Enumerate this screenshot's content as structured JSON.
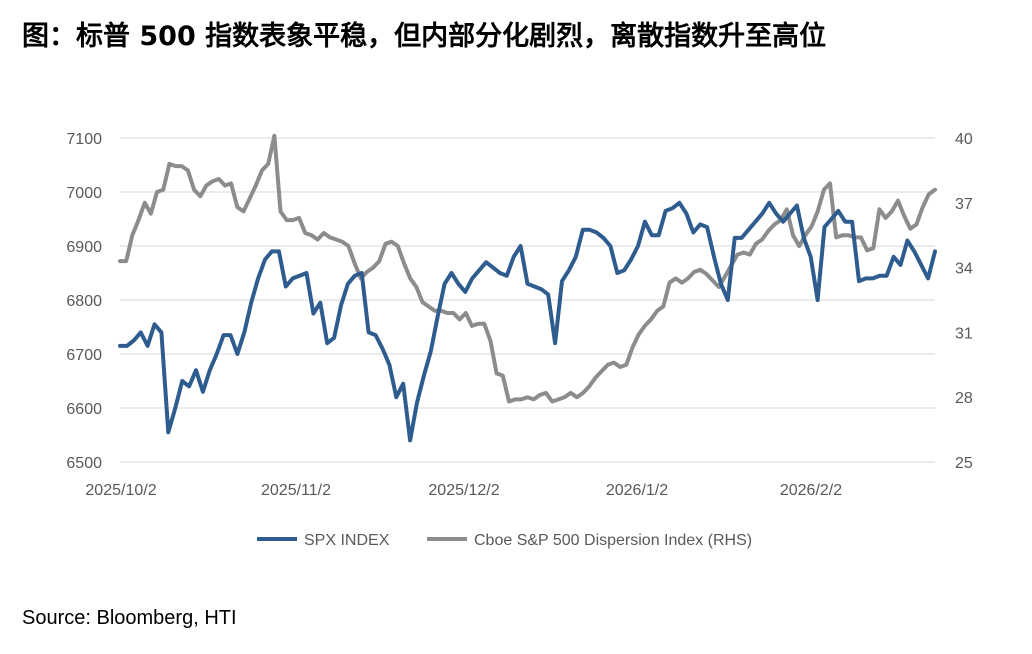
{
  "title": "图：标普 500 指数表象平稳，但内部分化剧烈，离散指数升至高位",
  "source": "Source: Bloomberg, HTI",
  "chart_data": {
    "type": "line",
    "x_tick_labels": [
      "2025/10/2",
      "2025/11/2",
      "2025/12/2",
      "2026/1/2",
      "2026/2/2"
    ],
    "left_axis": {
      "ticks": [
        6500,
        6600,
        6700,
        6800,
        6900,
        7000,
        7100
      ],
      "ylim": [
        6500,
        7100
      ]
    },
    "right_axis": {
      "ticks": [
        25,
        28,
        31,
        34,
        37,
        40
      ],
      "ylim": [
        25,
        40
      ]
    },
    "grid": "horizontal",
    "legend_position": "bottom",
    "series": [
      {
        "name": "SPX INDEX",
        "axis": "left",
        "color": "#2E5C8F",
        "values": [
          6715,
          6715,
          6725,
          6740,
          6715,
          6755,
          6740,
          6555,
          6600,
          6650,
          6640,
          6670,
          6630,
          6670,
          6700,
          6735,
          6735,
          6700,
          6740,
          6795,
          6840,
          6875,
          6890,
          6890,
          6825,
          6840,
          6845,
          6850,
          6775,
          6795,
          6720,
          6730,
          6790,
          6830,
          6845,
          6850,
          6740,
          6735,
          6710,
          6680,
          6620,
          6645,
          6540,
          6610,
          6660,
          6705,
          6770,
          6830,
          6850,
          6830,
          6815,
          6840,
          6855,
          6870,
          6860,
          6850,
          6845,
          6880,
          6900,
          6830,
          6825,
          6820,
          6810,
          6720,
          6835,
          6855,
          6880,
          6930,
          6930,
          6925,
          6915,
          6900,
          6850,
          6855,
          6875,
          6900,
          6945,
          6920,
          6920,
          6965,
          6970,
          6980,
          6960,
          6925,
          6940,
          6935,
          6880,
          6830,
          6800,
          6915,
          6915,
          6930,
          6945,
          6960,
          6980,
          6960,
          6945,
          6960,
          6975,
          6915,
          6880,
          6800,
          6935,
          6950,
          6965,
          6945,
          6945,
          6835,
          6840,
          6840,
          6845,
          6845,
          6880,
          6865,
          6910,
          6890,
          6865,
          6840,
          6890
        ]
      },
      {
        "name": "Cboe S&P 500 Dispersion Index (RHS)",
        "axis": "right",
        "color": "#8C8C8C",
        "values": [
          34.3,
          34.3,
          35.5,
          36.2,
          37.0,
          36.5,
          37.5,
          37.6,
          38.8,
          38.7,
          38.7,
          38.5,
          37.6,
          37.3,
          37.8,
          38.0,
          38.1,
          37.8,
          37.9,
          36.8,
          36.6,
          37.2,
          37.8,
          38.5,
          38.8,
          40.1,
          36.6,
          36.2,
          36.2,
          36.3,
          35.6,
          35.5,
          35.3,
          35.6,
          35.4,
          35.3,
          35.2,
          35.0,
          34.2,
          33.5,
          33.8,
          34.0,
          34.3,
          35.1,
          35.2,
          35.0,
          34.2,
          33.5,
          33.1,
          32.4,
          32.2,
          32.0,
          32.0,
          31.9,
          31.9,
          31.6,
          31.9,
          31.3,
          31.4,
          31.4,
          30.6,
          29.1,
          29.0,
          27.8,
          27.9,
          27.9,
          28.0,
          27.9,
          28.1,
          28.2,
          27.8,
          27.9,
          28.0,
          28.2,
          28.0,
          28.2,
          28.5,
          28.9,
          29.2,
          29.5,
          29.6,
          29.4,
          29.5,
          30.3,
          30.9,
          31.3,
          31.6,
          32.0,
          32.2,
          33.3,
          33.5,
          33.3,
          33.5,
          33.8,
          33.9,
          33.7,
          33.4,
          33.1,
          33.6,
          34.1,
          34.6,
          34.7,
          34.6,
          35.1,
          35.3,
          35.7,
          36.0,
          36.2,
          36.7,
          35.5,
          35.0,
          35.5,
          35.9,
          36.6,
          37.6,
          37.9,
          35.4,
          35.5,
          35.5,
          35.4,
          35.4,
          34.8,
          34.9,
          36.7,
          36.3,
          36.6,
          37.1,
          36.4,
          35.8,
          36.0,
          36.8,
          37.4,
          37.6
        ]
      }
    ]
  }
}
